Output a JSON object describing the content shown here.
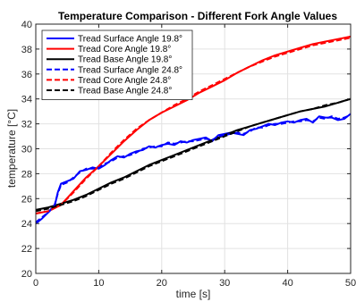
{
  "chart_data": {
    "type": "line",
    "title": "Temperature Comparison - Different Fork Angle Values",
    "xlabel": "time [s]",
    "ylabel": "temperature [°C]",
    "xlim": [
      0,
      50
    ],
    "ylim": [
      20,
      40
    ],
    "xticks": [
      "0",
      "10",
      "20",
      "30",
      "40",
      "50"
    ],
    "yticks": [
      "20",
      "22",
      "24",
      "26",
      "28",
      "30",
      "32",
      "34",
      "36",
      "38",
      "40"
    ],
    "grid": true,
    "legend_position": "top-left",
    "series": [
      {
        "name": "Tread Surface Angle 19.8°",
        "color": "#0000ff",
        "dash": "solid",
        "x": [
          0,
          1,
          2,
          3,
          3.5,
          4,
          5,
          6,
          7,
          8,
          9,
          10,
          11,
          12,
          13,
          14,
          15,
          16,
          17,
          18,
          19,
          20,
          21,
          22,
          23,
          24,
          25,
          26,
          27,
          28,
          29,
          30,
          31,
          32,
          33,
          34,
          35,
          36,
          37,
          38,
          39,
          40,
          41,
          42,
          43,
          44,
          45,
          46,
          47,
          48,
          49,
          50
        ],
        "y": [
          24.0,
          24.4,
          24.9,
          25.4,
          26.5,
          27.2,
          27.4,
          27.6,
          28.2,
          28.3,
          28.5,
          28.4,
          28.7,
          29.1,
          29.4,
          29.3,
          29.6,
          29.8,
          29.9,
          30.2,
          30.1,
          30.3,
          30.4,
          30.3,
          30.6,
          30.5,
          30.7,
          30.8,
          30.9,
          30.6,
          31.1,
          31.2,
          31.3,
          31.2,
          31.1,
          31.5,
          31.6,
          31.8,
          32.0,
          31.9,
          32.1,
          32.2,
          32.1,
          32.3,
          32.4,
          32.1,
          32.6,
          32.5,
          32.5,
          32.3,
          32.4,
          32.8
        ]
      },
      {
        "name": "Tread Core Angle 19.8°",
        "color": "#ff0000",
        "dash": "solid",
        "x": [
          0,
          2,
          4,
          6,
          8,
          10,
          12,
          14,
          16,
          18,
          20,
          22,
          24,
          26,
          28,
          30,
          32,
          34,
          36,
          38,
          40,
          42,
          44,
          46,
          48,
          50
        ],
        "y": [
          24.8,
          25.0,
          25.5,
          26.6,
          27.7,
          28.6,
          29.6,
          30.6,
          31.5,
          32.3,
          32.9,
          33.4,
          33.9,
          34.5,
          35.0,
          35.5,
          36.1,
          36.6,
          37.1,
          37.5,
          37.8,
          38.1,
          38.4,
          38.6,
          38.8,
          39.0
        ]
      },
      {
        "name": "Tread Base Angle 19.8°",
        "color": "#000000",
        "dash": "solid",
        "x": [
          0,
          2,
          4,
          6,
          8,
          10,
          12,
          14,
          16,
          18,
          20,
          22,
          24,
          26,
          28,
          30,
          32,
          34,
          36,
          38,
          40,
          42,
          44,
          46,
          48,
          50
        ],
        "y": [
          25.1,
          25.3,
          25.6,
          25.9,
          26.3,
          26.8,
          27.3,
          27.7,
          28.2,
          28.7,
          29.1,
          29.5,
          29.9,
          30.3,
          30.7,
          31.1,
          31.5,
          31.8,
          32.1,
          32.4,
          32.7,
          33.0,
          33.2,
          33.4,
          33.7,
          34.0
        ]
      },
      {
        "name": "Tread Surface  Angle 24.8°",
        "color": "#0000ff",
        "dash": "dashed",
        "x": [
          0,
          1,
          2,
          3,
          3.5,
          4,
          5,
          6,
          7,
          8,
          9,
          10,
          11,
          12,
          13,
          14,
          15,
          16,
          17,
          18,
          19,
          20,
          21,
          22,
          23,
          24,
          25,
          26,
          27,
          28,
          29,
          30,
          31,
          32,
          33,
          34,
          35,
          36,
          37,
          38,
          39,
          40,
          41,
          42,
          43,
          44,
          45,
          46,
          47,
          48,
          49,
          50
        ],
        "y": [
          24.1,
          24.5,
          24.9,
          25.5,
          26.4,
          27.1,
          27.3,
          27.7,
          28.1,
          28.4,
          28.4,
          28.5,
          28.8,
          29.0,
          29.3,
          29.4,
          29.5,
          29.7,
          30.0,
          30.1,
          30.2,
          30.2,
          30.5,
          30.4,
          30.5,
          30.6,
          30.6,
          30.7,
          30.8,
          30.7,
          31.0,
          31.1,
          31.2,
          31.3,
          31.2,
          31.4,
          31.7,
          31.7,
          31.9,
          32.0,
          32.0,
          32.1,
          32.2,
          32.2,
          32.3,
          32.2,
          32.5,
          32.4,
          32.6,
          32.4,
          32.5,
          32.7
        ]
      },
      {
        "name": "Tread Core  Angle 24.8°",
        "color": "#ff0000",
        "dash": "dashed",
        "x": [
          0,
          2,
          4,
          6,
          8,
          10,
          12,
          14,
          16,
          18,
          20,
          22,
          24,
          26,
          28,
          30,
          32,
          34,
          36,
          38,
          40,
          42,
          44,
          46,
          48,
          50
        ],
        "y": [
          24.8,
          25.0,
          25.5,
          26.5,
          27.6,
          28.6,
          29.7,
          30.7,
          31.6,
          32.3,
          32.9,
          33.5,
          34.0,
          34.6,
          35.1,
          35.6,
          36.1,
          36.6,
          37.0,
          37.4,
          37.7,
          38.0,
          38.3,
          38.5,
          38.7,
          38.9
        ]
      },
      {
        "name": "Tread Base Angle 24.8°",
        "color": "#000000",
        "dash": "dashed",
        "x": [
          0,
          2,
          4,
          6,
          8,
          10,
          12,
          14,
          16,
          18,
          20,
          22,
          24,
          26,
          28,
          30,
          32,
          34,
          36,
          38,
          40,
          42,
          44,
          46,
          48,
          50
        ],
        "y": [
          25.0,
          25.2,
          25.5,
          25.8,
          26.2,
          26.7,
          27.2,
          27.6,
          28.1,
          28.6,
          29.0,
          29.4,
          29.8,
          30.2,
          30.6,
          31.0,
          31.4,
          31.8,
          32.1,
          32.4,
          32.7,
          33.0,
          33.2,
          33.5,
          33.7,
          34.0
        ]
      }
    ]
  }
}
